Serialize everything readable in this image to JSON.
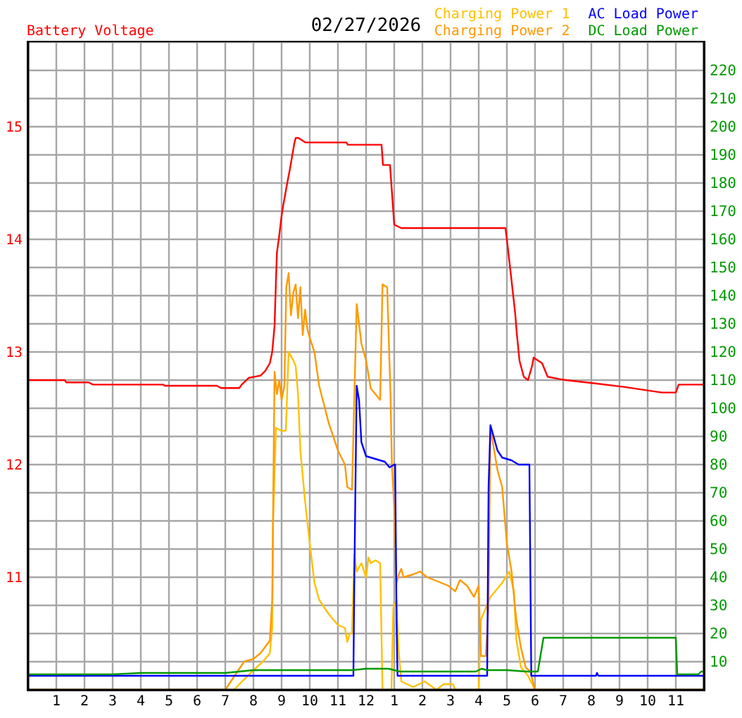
{
  "chart_data": {
    "type": "line",
    "title": "02/27/2026",
    "series": [
      {
        "name": "Battery Voltage",
        "color": "#ff0000",
        "x": [
          "2026-02-27T00:00",
          "2026-02-27T01:18",
          "2026-02-27T01:21",
          "2026-02-27T02:09",
          "2026-02-27T02:18",
          "2026-02-27T04:48",
          "2026-02-27T04:51",
          "2026-02-27T06:42",
          "2026-02-27T06:51",
          "2026-02-27T07:30",
          "2026-02-27T07:35",
          "2026-02-27T07:50",
          "2026-02-27T08:15",
          "2026-02-27T08:25",
          "2026-02-27T08:35",
          "2026-02-27T08:40",
          "2026-02-27T08:45",
          "2026-02-27T08:48",
          "2026-02-27T08:50",
          "2026-02-27T08:54",
          "2026-02-27T09:00",
          "2026-02-27T09:03",
          "2026-02-27T09:12",
          "2026-02-27T09:18",
          "2026-02-27T09:27",
          "2026-02-27T09:30",
          "2026-02-27T09:36",
          "2026-02-27T09:51",
          "2026-02-27T11:18",
          "2026-02-27T11:21",
          "2026-02-27T12:33",
          "2026-02-27T12:36",
          "2026-02-27T12:51",
          "2026-02-27T13:00",
          "2026-02-27T13:15",
          "2026-02-27T16:57",
          "2026-02-27T17:00",
          "2026-02-27T17:09",
          "2026-02-27T17:18",
          "2026-02-27T17:21",
          "2026-02-27T17:27",
          "2026-02-27T17:36",
          "2026-02-27T17:45",
          "2026-02-27T17:54",
          "2026-02-27T17:57",
          "2026-02-27T18:15",
          "2026-02-27T18:27",
          "2026-02-27T18:51",
          "2026-02-27T19:06",
          "2026-02-27T20:09",
          "2026-02-27T21:09",
          "2026-02-27T22:30",
          "2026-02-27T23:00",
          "2026-02-27T23:06",
          "2026-02-28T00:00"
        ],
        "values": [
          12.75,
          12.75,
          12.73,
          12.73,
          12.71,
          12.71,
          12.7,
          12.7,
          12.68,
          12.68,
          12.71,
          12.77,
          12.79,
          12.83,
          12.9,
          13.0,
          13.23,
          13.63,
          13.88,
          14.0,
          14.21,
          14.29,
          14.5,
          14.63,
          14.85,
          14.9,
          14.9,
          14.86,
          14.86,
          14.84,
          14.84,
          14.66,
          14.66,
          14.13,
          14.1,
          14.1,
          14.0,
          13.67,
          13.33,
          13.17,
          12.92,
          12.78,
          12.75,
          12.88,
          12.95,
          12.9,
          12.78,
          12.76,
          12.75,
          12.72,
          12.69,
          12.64,
          12.64,
          12.71,
          12.71
        ]
      },
      {
        "name": "Charging Power 1",
        "color": "#ffc000",
        "axis": "y2",
        "x": [
          "2026-02-27T00:00",
          "2026-02-27T07:18",
          "2026-02-27T08:00",
          "2026-02-27T08:20",
          "2026-02-27T08:35",
          "2026-02-27T08:40",
          "2026-02-27T08:42",
          "2026-02-27T08:48",
          "2026-02-27T09:00",
          "2026-02-27T09:09",
          "2026-02-27T09:15",
          "2026-02-27T09:25",
          "2026-02-27T09:30",
          "2026-02-27T09:35",
          "2026-02-27T09:40",
          "2026-02-27T09:50",
          "2026-02-27T10:00",
          "2026-02-27T10:10",
          "2026-02-27T10:20",
          "2026-02-27T10:40",
          "2026-02-27T11:00",
          "2026-02-27T11:15",
          "2026-02-27T11:20",
          "2026-02-27T11:25",
          "2026-02-27T11:30",
          "2026-02-27T11:35",
          "2026-02-27T11:40",
          "2026-02-27T11:50",
          "2026-02-27T12:00",
          "2026-02-27T12:05",
          "2026-02-27T12:10",
          "2026-02-27T12:20",
          "2026-02-27T12:30",
          "2026-02-27T12:35",
          "2026-02-27T12:54",
          "2026-02-27T12:58",
          "2026-02-27T13:05",
          "2026-02-27T13:09",
          "2026-02-27T13:15",
          "2026-02-27T13:40",
          "2026-02-27T14:05",
          "2026-02-27T14:30",
          "2026-02-27T14:45",
          "2026-02-27T15:05",
          "2026-02-27T15:10",
          "2026-02-27T16:00",
          "2026-02-27T16:02",
          "2026-02-27T16:05",
          "2026-02-27T16:25",
          "2026-02-27T16:35",
          "2026-02-27T16:50",
          "2026-02-27T17:05",
          "2026-02-27T17:15",
          "2026-02-27T17:20",
          "2026-02-27T17:30",
          "2026-02-27T17:45",
          "2026-02-27T18:00",
          "2026-02-28T00:00"
        ],
        "values": [
          0,
          0,
          7,
          10,
          13,
          22,
          60,
          93,
          92,
          92,
          120,
          117,
          115,
          105,
          85,
          67,
          52,
          38,
          32,
          27,
          23,
          22,
          17,
          20,
          20,
          48,
          42,
          45,
          40,
          47,
          45,
          46,
          45,
          0,
          0,
          29,
          32,
          15,
          3,
          1,
          3,
          0,
          2,
          2,
          0,
          0,
          12,
          25,
          33,
          35,
          38,
          42,
          35,
          18,
          8,
          5,
          0,
          0
        ]
      },
      {
        "name": "Charging Power 2",
        "color": "#ff9900",
        "axis": "y2",
        "x": [
          "2026-02-27T00:00",
          "2026-02-27T07:00",
          "2026-02-27T07:40",
          "2026-02-27T08:00",
          "2026-02-27T08:15",
          "2026-02-27T08:35",
          "2026-02-27T08:40",
          "2026-02-27T08:45",
          "2026-02-27T08:50",
          "2026-02-27T08:55",
          "2026-02-27T09:00",
          "2026-02-27T09:06",
          "2026-02-27T09:10",
          "2026-02-27T09:15",
          "2026-02-27T09:20",
          "2026-02-27T09:25",
          "2026-02-27T09:30",
          "2026-02-27T09:35",
          "2026-02-27T09:40",
          "2026-02-27T09:45",
          "2026-02-27T09:50",
          "2026-02-27T09:55",
          "2026-02-27T10:00",
          "2026-02-27T10:10",
          "2026-02-27T10:20",
          "2026-02-27T10:40",
          "2026-02-27T11:00",
          "2026-02-27T11:15",
          "2026-02-27T11:20",
          "2026-02-27T11:30",
          "2026-02-27T11:40",
          "2026-02-27T11:50",
          "2026-02-27T12:00",
          "2026-02-27T12:10",
          "2026-02-27T12:30",
          "2026-02-27T12:35",
          "2026-02-27T12:45",
          "2026-02-27T12:52",
          "2026-02-27T12:55",
          "2026-02-27T13:00",
          "2026-02-27T13:05",
          "2026-02-27T13:10",
          "2026-02-27T13:15",
          "2026-02-27T13:20",
          "2026-02-27T13:40",
          "2026-02-27T13:55",
          "2026-02-27T14:10",
          "2026-02-27T14:25",
          "2026-02-27T14:40",
          "2026-02-27T14:55",
          "2026-02-27T15:10",
          "2026-02-27T15:20",
          "2026-02-27T15:35",
          "2026-02-27T15:50",
          "2026-02-27T16:00",
          "2026-02-27T16:02",
          "2026-02-27T16:05",
          "2026-02-27T16:15",
          "2026-02-27T16:21",
          "2026-02-27T16:25",
          "2026-02-27T16:40",
          "2026-02-27T16:50",
          "2026-02-27T17:00",
          "2026-02-27T17:10",
          "2026-02-27T17:20",
          "2026-02-27T17:30",
          "2026-02-27T17:40",
          "2026-02-27T17:50",
          "2026-02-27T18:00",
          "2026-02-28T00:00"
        ],
        "values": [
          0,
          0,
          10,
          11,
          13,
          17.5,
          32,
          113,
          105,
          110,
          103,
          108,
          143,
          148,
          133,
          141,
          144,
          132,
          143,
          126,
          135,
          128,
          125,
          120,
          108,
          95,
          85,
          80,
          72,
          71,
          137,
          123,
          117,
          107,
          103,
          144,
          143,
          105,
          80,
          65,
          38,
          41,
          43,
          40,
          41,
          42,
          40,
          39,
          38,
          37,
          35,
          39,
          37,
          33,
          37,
          25,
          12,
          12,
          30,
          93,
          78,
          72,
          52,
          42,
          25,
          15,
          8,
          6.5,
          0,
          0
        ]
      },
      {
        "name": "AC Load Power",
        "color": "#0000ff",
        "axis": "y2",
        "x": [
          "2026-02-27T00:00",
          "2026-02-27T11:33",
          "2026-02-27T11:35",
          "2026-02-27T11:40",
          "2026-02-27T11:45",
          "2026-02-27T11:50",
          "2026-02-27T12:00",
          "2026-02-27T12:20",
          "2026-02-27T12:40",
          "2026-02-27T12:50",
          "2026-02-27T13:00",
          "2026-02-27T13:02",
          "2026-02-27T13:05",
          "2026-02-27T13:07",
          "2026-02-27T16:18",
          "2026-02-27T16:21",
          "2026-02-27T16:25",
          "2026-02-27T16:40",
          "2026-02-27T16:50",
          "2026-02-27T17:10",
          "2026-02-27T17:25",
          "2026-02-27T17:48",
          "2026-02-27T17:50",
          "2026-02-27T17:52",
          "2026-02-27T20:10",
          "2026-02-27T20:12",
          "2026-02-27T20:15",
          "2026-02-28T00:00"
        ],
        "values": [
          5,
          5,
          40,
          108,
          103,
          88,
          83,
          82,
          81,
          79,
          80,
          80,
          24,
          5,
          5,
          72,
          94,
          85,
          82.5,
          81.5,
          80,
          80,
          43,
          5,
          5,
          6,
          5,
          5
        ]
      },
      {
        "name": "DC Load Power",
        "color": "#009900",
        "axis": "y2",
        "x": [
          "2026-02-27T00:00",
          "2026-02-27T03:00",
          "2026-02-27T04:00",
          "2026-02-27T07:00",
          "2026-02-27T08:00",
          "2026-02-27T09:30",
          "2026-02-27T11:30",
          "2026-02-27T12:00",
          "2026-02-27T12:48",
          "2026-02-27T13:12",
          "2026-02-27T15:54",
          "2026-02-27T16:06",
          "2026-02-27T16:18",
          "2026-02-27T17:00",
          "2026-02-27T17:42",
          "2026-02-27T18:06",
          "2026-02-27T18:18",
          "2026-02-27T23:00",
          "2026-02-27T23:03",
          "2026-02-27T23:48",
          "2026-02-27T23:54",
          "2026-02-28T00:00"
        ],
        "values": [
          5.5,
          5.5,
          6,
          6,
          7,
          7,
          7,
          7.5,
          7.5,
          6.5,
          6.5,
          7.5,
          7,
          7,
          6.5,
          6.5,
          18.5,
          18.5,
          5.5,
          5.5,
          6.5,
          6.5
        ]
      }
    ],
    "xlim": [
      "2026-02-27T00:00",
      "2026-02-28T00:00"
    ],
    "xticks": [
      {
        "value": "2026-02-27T01:00",
        "label": "1"
      },
      {
        "value": "2026-02-27T02:00",
        "label": "2"
      },
      {
        "value": "2026-02-27T03:00",
        "label": "3"
      },
      {
        "value": "2026-02-27T04:00",
        "label": "4"
      },
      {
        "value": "2026-02-27T05:00",
        "label": "5"
      },
      {
        "value": "2026-02-27T06:00",
        "label": "6"
      },
      {
        "value": "2026-02-27T07:00",
        "label": "7"
      },
      {
        "value": "2026-02-27T08:00",
        "label": "8"
      },
      {
        "value": "2026-02-27T09:00",
        "label": "9"
      },
      {
        "value": "2026-02-27T10:00",
        "label": "10"
      },
      {
        "value": "2026-02-27T11:00",
        "label": "11"
      },
      {
        "value": "2026-02-27T12:00",
        "label": "12"
      },
      {
        "value": "2026-02-27T13:00",
        "label": "1"
      },
      {
        "value": "2026-02-27T14:00",
        "label": "2"
      },
      {
        "value": "2026-02-27T15:00",
        "label": "3"
      },
      {
        "value": "2026-02-27T16:00",
        "label": "4"
      },
      {
        "value": "2026-02-27T17:00",
        "label": "5"
      },
      {
        "value": "2026-02-27T18:00",
        "label": "6"
      },
      {
        "value": "2026-02-27T19:00",
        "label": "7"
      },
      {
        "value": "2026-02-27T20:00",
        "label": "8"
      },
      {
        "value": "2026-02-27T21:00",
        "label": "9"
      },
      {
        "value": "2026-02-27T22:00",
        "label": "10"
      },
      {
        "value": "2026-02-27T23:00",
        "label": "11"
      }
    ],
    "ylim": [
      10,
      15.75
    ],
    "yticks": [
      {
        "value": 10.25,
        "label": null
      },
      {
        "value": 10.5,
        "label": null
      },
      {
        "value": 10.75,
        "label": null
      },
      11,
      {
        "value": 11.25,
        "label": null
      },
      {
        "value": 11.5,
        "label": null
      },
      {
        "value": 11.75,
        "label": null
      },
      12,
      {
        "value": 12.25,
        "label": null
      },
      {
        "value": 12.5,
        "label": null
      },
      {
        "value": 12.75,
        "label": null
      },
      13,
      {
        "value": 13.25,
        "label": null
      },
      {
        "value": 13.5,
        "label": null
      },
      {
        "value": 13.75,
        "label": null
      },
      14,
      {
        "value": 14.25,
        "label": null
      },
      {
        "value": 14.5,
        "label": null
      },
      {
        "value": 14.75,
        "label": null
      },
      15,
      {
        "value": 15.25,
        "label": null
      },
      {
        "value": 15.5,
        "label": null
      }
    ],
    "y2lim": [
      0,
      230
    ],
    "y2ticks": [
      10,
      20,
      30,
      40,
      50,
      60,
      70,
      80,
      90,
      100,
      110,
      120,
      130,
      140,
      150,
      160,
      170,
      180,
      190,
      200,
      210,
      220
    ],
    "grid": true,
    "legend": "top"
  }
}
